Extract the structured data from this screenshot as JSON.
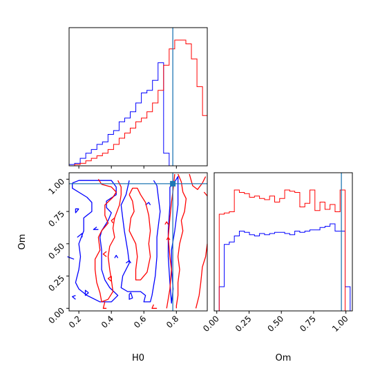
{
  "chart_data": {
    "type": "corner",
    "parameters": [
      "H0",
      "Om"
    ],
    "axis_labels": {
      "H0": "H0",
      "Om": "Om"
    },
    "truth": {
      "H0": 0.778,
      "Om": 0.965
    },
    "colors": {
      "run_a": "#0000ff",
      "run_b": "#ff0000",
      "truth": "#1f77b4"
    },
    "series": [
      {
        "color": "#0000ff"
      },
      {
        "color": "#ff0000"
      }
    ],
    "h0_ticks": [
      "0.2",
      "0.4",
      "0.6",
      "0.8"
    ],
    "h0_tick_values": [
      0.2,
      0.4,
      0.6,
      0.8
    ],
    "om_ticks": [
      "0.00",
      "0.25",
      "0.50",
      "0.75",
      "1.00"
    ],
    "om_tick_values": [
      0.0,
      0.25,
      0.5,
      0.75,
      1.0
    ],
    "h0_range": [
      0.14,
      0.99
    ],
    "om_range": [
      -0.02,
      1.05
    ],
    "h0_hist": {
      "edges": [
        0.14,
        0.1742,
        0.2084,
        0.2426,
        0.2768,
        0.311,
        0.3452,
        0.3794,
        0.4136,
        0.4478,
        0.482,
        0.5162,
        0.5504,
        0.5846,
        0.6188,
        0.653,
        0.6872,
        0.7214,
        0.7556,
        0.7898,
        0.824,
        0.8582,
        0.8924,
        0.9266,
        0.9608,
        0.99
      ],
      "run_a": [
        1,
        2,
        6,
        10,
        13,
        17,
        19,
        25,
        28,
        35,
        38,
        43,
        50,
        58,
        60,
        68,
        82,
        10,
        0,
        0,
        0,
        0,
        0,
        0,
        0
      ],
      "run_b": [
        0,
        1,
        2,
        4,
        6,
        8,
        10,
        13,
        17,
        22,
        26,
        30,
        35,
        38,
        43,
        50,
        60,
        80,
        93,
        100,
        100,
        97,
        85,
        63,
        40
      ]
    },
    "om_hist": {
      "edges": [
        -0.02,
        0.019,
        0.058,
        0.097,
        0.136,
        0.175,
        0.214,
        0.253,
        0.292,
        0.331,
        0.37,
        0.409,
        0.448,
        0.487,
        0.526,
        0.565,
        0.604,
        0.643,
        0.682,
        0.721,
        0.76,
        0.799,
        0.838,
        0.877,
        0.916,
        0.955,
        0.994,
        1.033
      ],
      "run_a": [
        0,
        20,
        55,
        57,
        62,
        66,
        65,
        63,
        62,
        64,
        63,
        64,
        65,
        65,
        64,
        63,
        66,
        65,
        66,
        67,
        67,
        69,
        70,
        72,
        66,
        66,
        20
      ],
      "run_b": [
        0,
        80,
        81,
        82,
        100,
        98,
        97,
        94,
        95,
        93,
        92,
        95,
        90,
        93,
        100,
        99,
        98,
        86,
        89,
        100,
        83,
        90,
        84,
        88,
        82,
        100,
        0
      ]
    }
  }
}
